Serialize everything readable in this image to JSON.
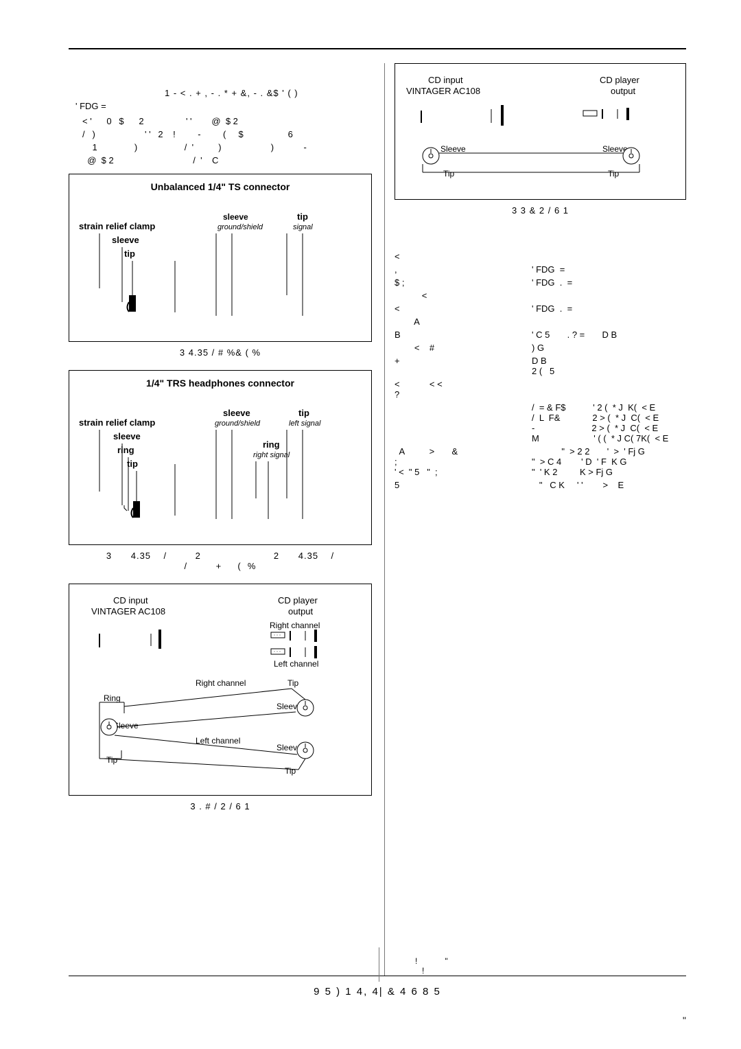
{
  "header_garble": "1 - < . + , - .  * +   &, - .  &$ ' ( )",
  "header_garble2": "' FDG  =",
  "body_garble": "< '      0   $      2                 ' '        @  $ 2\n/   )                    ' '   2    !         -         (     $                  6\n    1               )                   /  '          )                    )            -\n  @  $ 2                                /  '    C",
  "fig1": {
    "title": "Unbalanced 1/4\" TS connector",
    "strain_relief": "strain relief clamp",
    "sleeve": "sleeve",
    "ground_shield": "ground/shield",
    "tip": "tip",
    "signal": "signal"
  },
  "fig1_caption": "3      4.35                     /         #     %&             (   %",
  "fig2": {
    "title": "1/4\" TRS headphones connector",
    "strain_relief": "strain relief clamp",
    "sleeve": "sleeve",
    "ground_shield": "ground/shield",
    "ring": "ring",
    "right_signal": "right signal",
    "tip": "tip",
    "left_signal": "left signal"
  },
  "fig2_caption": "3      4.35    /         2                       2      4.35    /\n/         +     (  %",
  "fig3": {
    "cd_input": "CD input",
    "product": "VINTAGER AC108",
    "cd_output": "CD player",
    "output": "output",
    "right_channel": "Right channel",
    "left_channel": "Left channel",
    "ring": "Ring",
    "sleeve": "Sleeve",
    "tip": "Tip"
  },
  "fig3_caption": "3 .    #   /       2       / 6  1",
  "fig4": {
    "cd_input": "CD input",
    "product": "VINTAGER AC108",
    "cd_output": "CD player",
    "output": "output",
    "sleeve": "Sleeve",
    "tip": "Tip"
  },
  "fig4_caption": "3 3   &       2       / 6  1",
  "specs": [
    {
      "k": "<",
      "v": ""
    },
    {
      "k": ",",
      "v": "' FDG  ="
    },
    {
      "k": "$ ;",
      "v": "' FDG  .  ="
    },
    {
      "k": "           <",
      "v": ""
    },
    {
      "k": "<",
      "v": "' FDG  .  ="
    },
    {
      "k": "        A",
      "v": ""
    },
    {
      "k": "B",
      "v": "' C 5       . ? =       D B"
    },
    {
      "k": "        <    #",
      "v": ") G"
    },
    {
      "k": "+",
      "v": "D B\n2 (   5"
    },
    {
      "k": "<            < <\n?",
      "v": ""
    },
    {
      "k": "",
      "v": "/  = & F$           ' 2 (  * J  K(  < E\n/  L  F&             2 > (  * J  C(  < E\n-                       2 > (  * J  C(  < E\nM                      ' ( (  * J C( 7K(  < E"
    },
    {
      "k": "  A          >       &\n;\n' <  \" 5   \"  ;",
      "v": "            \"  > 2 2       '  >  ' Fj G\n\"  > C 4        ' D  ' F  K G\n\"  ' K 2         K > Fj G"
    },
    {
      "k": "5",
      "v": "   \"   C K     ' '        >    E"
    }
  ],
  "foot_garble_marks": "!            \"\n   !",
  "footer": "9   5 )     1 4,  4|     & 4 6 8 5",
  "footer_r": "\""
}
